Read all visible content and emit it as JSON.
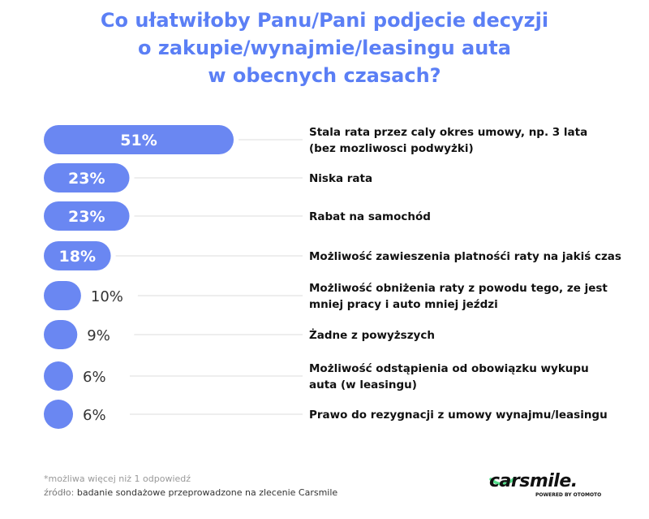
{
  "title_lines": [
    "Co ułatwiłoby Panu/Pani podjecie decyzji",
    "o zakupie/wynajmie/leasingu auta",
    "w obecnych czasach?"
  ],
  "footnote": "*możliwa więcej niż 1 odpowiedź",
  "source_prefix": "źródło:",
  "source_text": "badanie sondażowe przeprowadzone na zlecenie Carsmile",
  "logo": {
    "brand": "carsmile.",
    "sub": "POWERED BY OTOMOTO"
  },
  "colors": {
    "bar": "#6a87f2",
    "title": "#5b7ff5",
    "logo_accent": "#55e08c",
    "text": "#111111",
    "connector": "#dddddd"
  },
  "chart_data": {
    "type": "bar",
    "orientation": "horizontal",
    "value_unit": "%",
    "categories": [
      [
        "Stala rata przez caly okres umowy, np. 3 lata",
        "(bez mozliwosci podwyżki)"
      ],
      [
        "Niska rata"
      ],
      [
        "Rabat na samochód"
      ],
      [
        "Możliwość zawieszenia platnośći raty na jakiś czas"
      ],
      [
        "Możliwość obniżenia raty z powodu tego, ze jest",
        "mniej pracy i auto mniej jeździ"
      ],
      [
        "Żadne z powyższych"
      ],
      [
        "Możliwość odstąpienia od obowiązku wykupu",
        "auta (w leasingu)"
      ],
      [
        "Prawo do rezygnacji z umowy wynajmu/leasingu"
      ]
    ],
    "values": [
      51,
      23,
      23,
      18,
      10,
      9,
      6,
      6
    ],
    "labels": [
      "51%",
      "23%",
      "23%",
      "18%",
      "10%",
      "9%",
      "6%",
      "6%"
    ],
    "xlim": [
      0,
      51
    ]
  }
}
